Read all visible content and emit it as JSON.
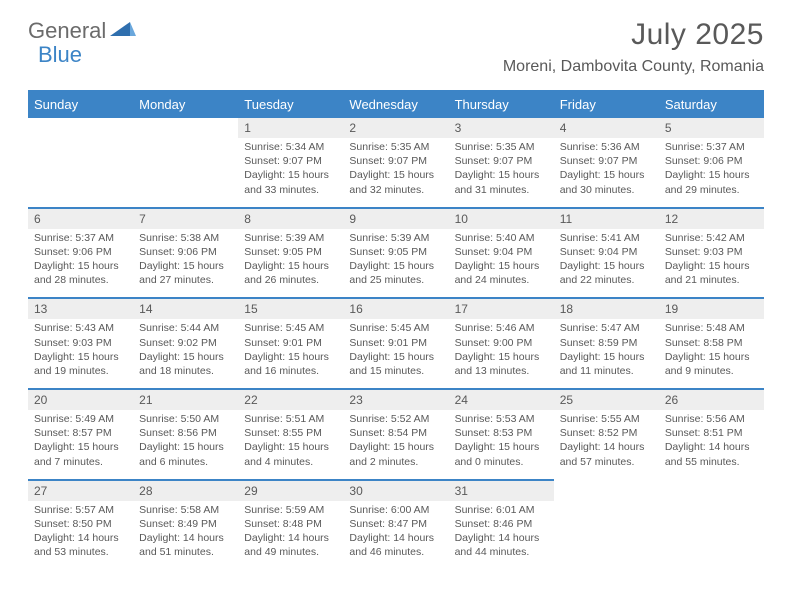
{
  "logo": {
    "text1": "General",
    "text2": "Blue"
  },
  "title": "July 2025",
  "location": "Moreni, Dambovita County, Romania",
  "colors": {
    "accent": "#3c84c6",
    "daynum_bg": "#eeeeee",
    "text": "#595959",
    "background": "#ffffff"
  },
  "weekdays": [
    "Sunday",
    "Monday",
    "Tuesday",
    "Wednesday",
    "Thursday",
    "Friday",
    "Saturday"
  ],
  "weeks": [
    [
      null,
      null,
      {
        "n": "1",
        "sr": "5:34 AM",
        "ss": "9:07 PM",
        "dl": "15 hours and 33 minutes."
      },
      {
        "n": "2",
        "sr": "5:35 AM",
        "ss": "9:07 PM",
        "dl": "15 hours and 32 minutes."
      },
      {
        "n": "3",
        "sr": "5:35 AM",
        "ss": "9:07 PM",
        "dl": "15 hours and 31 minutes."
      },
      {
        "n": "4",
        "sr": "5:36 AM",
        "ss": "9:07 PM",
        "dl": "15 hours and 30 minutes."
      },
      {
        "n": "5",
        "sr": "5:37 AM",
        "ss": "9:06 PM",
        "dl": "15 hours and 29 minutes."
      }
    ],
    [
      {
        "n": "6",
        "sr": "5:37 AM",
        "ss": "9:06 PM",
        "dl": "15 hours and 28 minutes."
      },
      {
        "n": "7",
        "sr": "5:38 AM",
        "ss": "9:06 PM",
        "dl": "15 hours and 27 minutes."
      },
      {
        "n": "8",
        "sr": "5:39 AM",
        "ss": "9:05 PM",
        "dl": "15 hours and 26 minutes."
      },
      {
        "n": "9",
        "sr": "5:39 AM",
        "ss": "9:05 PM",
        "dl": "15 hours and 25 minutes."
      },
      {
        "n": "10",
        "sr": "5:40 AM",
        "ss": "9:04 PM",
        "dl": "15 hours and 24 minutes."
      },
      {
        "n": "11",
        "sr": "5:41 AM",
        "ss": "9:04 PM",
        "dl": "15 hours and 22 minutes."
      },
      {
        "n": "12",
        "sr": "5:42 AM",
        "ss": "9:03 PM",
        "dl": "15 hours and 21 minutes."
      }
    ],
    [
      {
        "n": "13",
        "sr": "5:43 AM",
        "ss": "9:03 PM",
        "dl": "15 hours and 19 minutes."
      },
      {
        "n": "14",
        "sr": "5:44 AM",
        "ss": "9:02 PM",
        "dl": "15 hours and 18 minutes."
      },
      {
        "n": "15",
        "sr": "5:45 AM",
        "ss": "9:01 PM",
        "dl": "15 hours and 16 minutes."
      },
      {
        "n": "16",
        "sr": "5:45 AM",
        "ss": "9:01 PM",
        "dl": "15 hours and 15 minutes."
      },
      {
        "n": "17",
        "sr": "5:46 AM",
        "ss": "9:00 PM",
        "dl": "15 hours and 13 minutes."
      },
      {
        "n": "18",
        "sr": "5:47 AM",
        "ss": "8:59 PM",
        "dl": "15 hours and 11 minutes."
      },
      {
        "n": "19",
        "sr": "5:48 AM",
        "ss": "8:58 PM",
        "dl": "15 hours and 9 minutes."
      }
    ],
    [
      {
        "n": "20",
        "sr": "5:49 AM",
        "ss": "8:57 PM",
        "dl": "15 hours and 7 minutes."
      },
      {
        "n": "21",
        "sr": "5:50 AM",
        "ss": "8:56 PM",
        "dl": "15 hours and 6 minutes."
      },
      {
        "n": "22",
        "sr": "5:51 AM",
        "ss": "8:55 PM",
        "dl": "15 hours and 4 minutes."
      },
      {
        "n": "23",
        "sr": "5:52 AM",
        "ss": "8:54 PM",
        "dl": "15 hours and 2 minutes."
      },
      {
        "n": "24",
        "sr": "5:53 AM",
        "ss": "8:53 PM",
        "dl": "15 hours and 0 minutes."
      },
      {
        "n": "25",
        "sr": "5:55 AM",
        "ss": "8:52 PM",
        "dl": "14 hours and 57 minutes."
      },
      {
        "n": "26",
        "sr": "5:56 AM",
        "ss": "8:51 PM",
        "dl": "14 hours and 55 minutes."
      }
    ],
    [
      {
        "n": "27",
        "sr": "5:57 AM",
        "ss": "8:50 PM",
        "dl": "14 hours and 53 minutes."
      },
      {
        "n": "28",
        "sr": "5:58 AM",
        "ss": "8:49 PM",
        "dl": "14 hours and 51 minutes."
      },
      {
        "n": "29",
        "sr": "5:59 AM",
        "ss": "8:48 PM",
        "dl": "14 hours and 49 minutes."
      },
      {
        "n": "30",
        "sr": "6:00 AM",
        "ss": "8:47 PM",
        "dl": "14 hours and 46 minutes."
      },
      {
        "n": "31",
        "sr": "6:01 AM",
        "ss": "8:46 PM",
        "dl": "14 hours and 44 minutes."
      },
      null,
      null
    ]
  ],
  "labels": {
    "sunrise": "Sunrise:",
    "sunset": "Sunset:",
    "daylight": "Daylight:"
  }
}
